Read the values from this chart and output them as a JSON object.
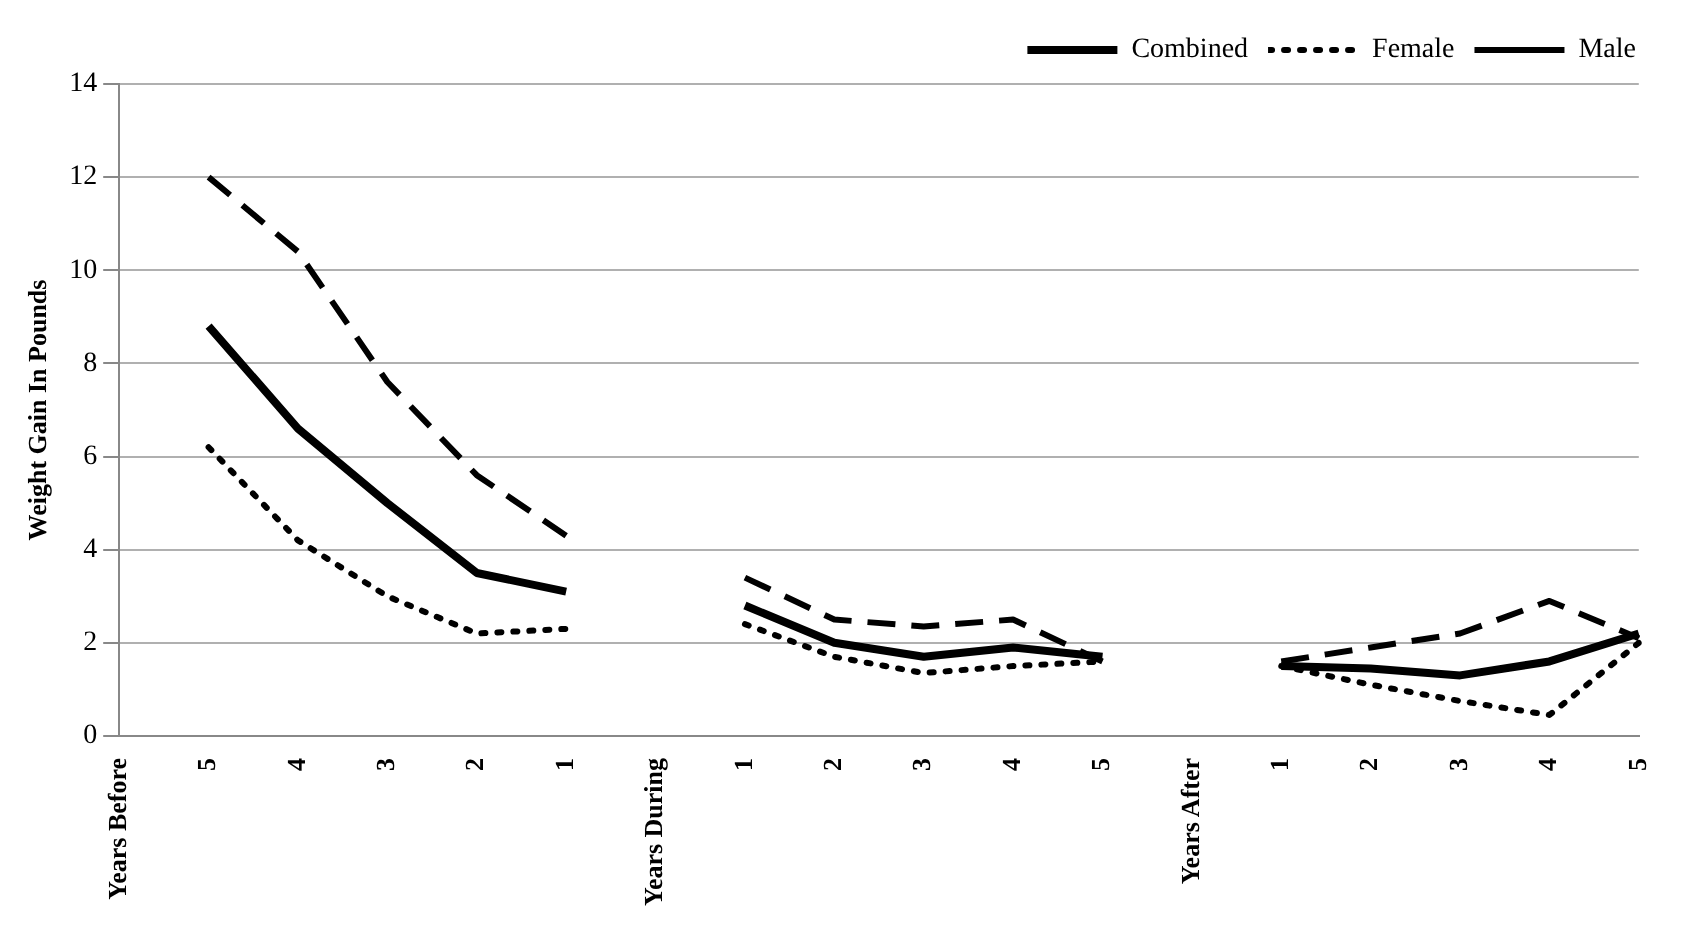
{
  "chart_data": {
    "type": "line",
    "ylabel": "Weight Gain In Pounds",
    "categories": [
      "Years Before",
      "5",
      "4",
      "3",
      "2",
      "1",
      "Years During",
      "1",
      "2",
      "3",
      "4",
      "5",
      "Years After",
      "1",
      "2",
      "3",
      "4",
      "5"
    ],
    "series": [
      {
        "name": "Combined",
        "color": "#000000",
        "line_style": "solid",
        "values": [
          null,
          8.8,
          6.6,
          5.0,
          3.5,
          3.1,
          null,
          2.8,
          2.0,
          1.7,
          1.9,
          1.7,
          null,
          1.5,
          1.45,
          1.3,
          1.6,
          2.2
        ]
      },
      {
        "name": "Female",
        "color": "#000000",
        "line_style": "dotted",
        "values": [
          null,
          6.2,
          4.2,
          3.0,
          2.2,
          2.3,
          null,
          2.4,
          1.7,
          1.35,
          1.5,
          1.6,
          null,
          1.5,
          1.1,
          0.75,
          0.45,
          2.0
        ]
      },
      {
        "name": "Male",
        "color": "#000000",
        "line_style": "dashed",
        "values": [
          null,
          12.0,
          10.4,
          7.6,
          5.6,
          4.3,
          null,
          3.4,
          2.5,
          2.35,
          2.5,
          1.6,
          null,
          1.6,
          1.9,
          2.2,
          2.9,
          2.1
        ]
      }
    ],
    "ylim": [
      0,
      14
    ],
    "yticks": [
      0,
      2,
      4,
      6,
      8,
      10,
      12,
      14
    ],
    "grid": "y",
    "legend": "top right",
    "marker": "none"
  }
}
